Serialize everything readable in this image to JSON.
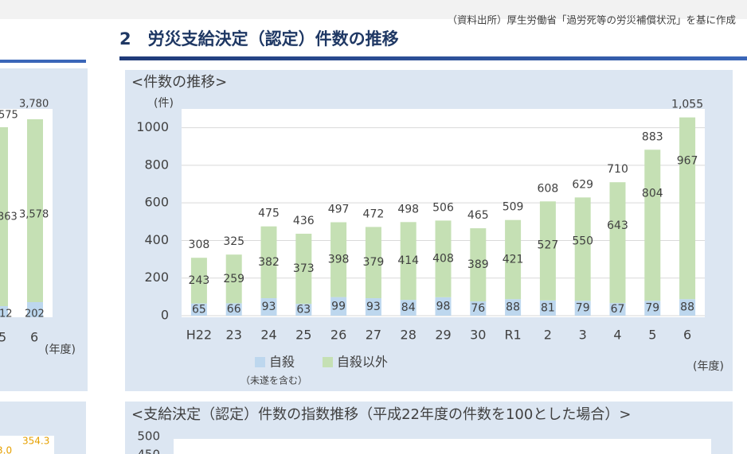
{
  "source": "（資料出所）厚生労働省「過労死等の労災補償状況」を基に作成",
  "heading": "2　労災支給決定（認定）件数の推移",
  "left_panel": {
    "labels": [
      "575",
      "3,780",
      "363",
      "3,578",
      "12",
      "202",
      "5",
      "6",
      "(年度)"
    ],
    "index_labels": [
      "354.3",
      "3.0"
    ]
  },
  "index_panel": {
    "title": "<支給決定（認定）件数の指数推移（平成22年度の件数を100とした場合）>",
    "ytick_labels": [
      500,
      450
    ]
  },
  "chart_data": {
    "type": "stacked_bar",
    "title": "<件数の推移>",
    "y_label": "(件)",
    "x_label": "(年度)",
    "categories": [
      "H22",
      "23",
      "24",
      "25",
      "26",
      "27",
      "28",
      "29",
      "30",
      "R1",
      "2",
      "3",
      "4",
      "5",
      "6"
    ],
    "series": [
      {
        "name": "自殺",
        "note": "（未遂を含む）",
        "color": "#bdd7ee",
        "values": [
          65,
          66,
          93,
          63,
          99,
          93,
          84,
          98,
          76,
          88,
          81,
          79,
          67,
          79,
          88
        ]
      },
      {
        "name": "自殺以外",
        "color": "#c5e0b4",
        "values": [
          243,
          259,
          382,
          373,
          398,
          379,
          414,
          408,
          389,
          421,
          527,
          550,
          643,
          804,
          967
        ]
      }
    ],
    "totals": [
      308,
      325,
      475,
      436,
      497,
      472,
      498,
      506,
      465,
      509,
      608,
      629,
      710,
      883,
      1055
    ],
    "total_value_labels": [
      "308",
      "325",
      "475",
      "436",
      "497",
      "472",
      "498",
      "506",
      "465",
      "509",
      "608",
      "629",
      "710",
      "883",
      "1,055"
    ],
    "ylim": [
      0,
      1100
    ],
    "yticks": [
      0,
      200,
      400,
      600,
      800,
      1000
    ],
    "grid": true
  }
}
